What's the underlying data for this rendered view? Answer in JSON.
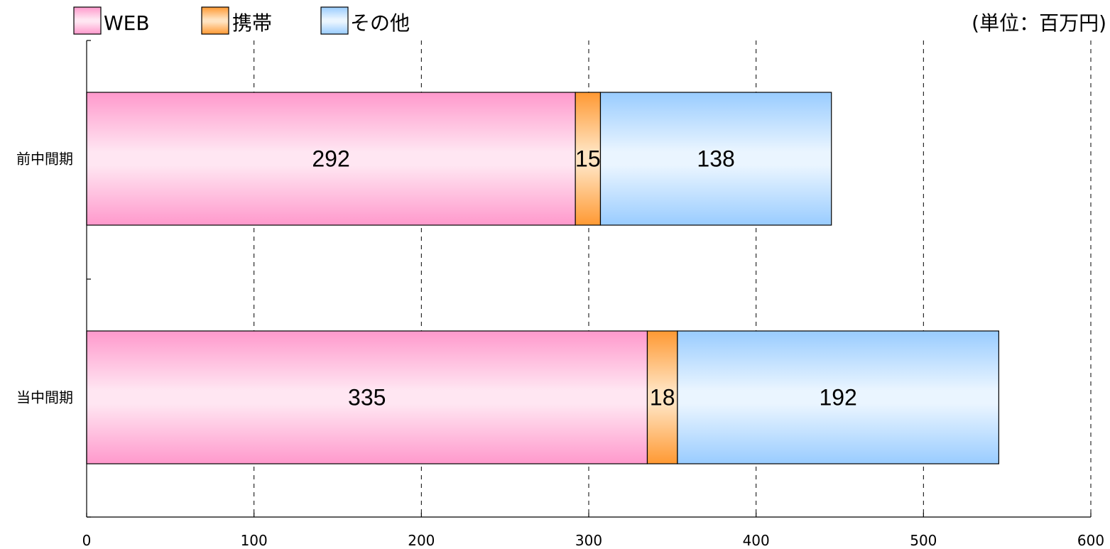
{
  "chart_data": {
    "type": "bar",
    "orientation": "horizontal",
    "stacked": true,
    "categories": [
      "前中間期",
      "当中間期"
    ],
    "series": [
      {
        "name": "WEB",
        "values": [
          292,
          335
        ],
        "color": "#ff99cc",
        "color_light": "#ffe6f2"
      },
      {
        "name": "携帯",
        "values": [
          15,
          18
        ],
        "color": "#ff9933",
        "color_light": "#ffe3c0"
      },
      {
        "name": "その他",
        "values": [
          138,
          192
        ],
        "color": "#99ccff",
        "color_light": "#eaf5ff"
      }
    ],
    "xlim": [
      0,
      600
    ],
    "x_ticks": [
      0,
      100,
      200,
      300,
      400,
      500,
      600
    ],
    "unit_label": "(単位：百万円)",
    "grid": true,
    "grid_style": "dashed",
    "legend_position": "top-left",
    "data_labels": true
  }
}
